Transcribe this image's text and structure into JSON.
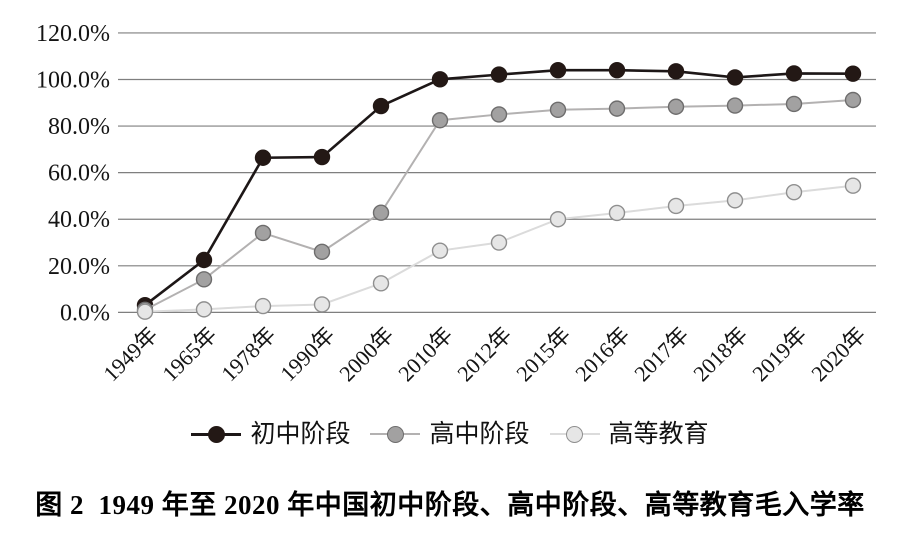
{
  "figure": {
    "caption": "图 2  1949 年至 2020 年中国初中阶段、高中阶段、高等教育毛入学率"
  },
  "chart_data": {
    "type": "line",
    "title": "图 2  1949 年至 2020 年中国初中阶段、高中阶段、高等教育毛入学率",
    "categories": [
      "1949年",
      "1965年",
      "1978年",
      "1990年",
      "2000年",
      "2010年",
      "2012年",
      "2015年",
      "2016年",
      "2017年",
      "2018年",
      "2019年",
      "2020年"
    ],
    "series": [
      {
        "name": "初中阶段",
        "values": [
          3.1,
          22.5,
          66.4,
          66.7,
          88.6,
          100.1,
          102.1,
          104.0,
          104.0,
          103.5,
          100.9,
          102.6,
          102.5
        ],
        "line_color": "#1d1717",
        "dot_fill": "#231815",
        "dot_stroke": "#231815"
      },
      {
        "name": "高中阶段",
        "values": [
          1.1,
          14.2,
          34.1,
          26.0,
          42.8,
          82.5,
          85.0,
          87.0,
          87.5,
          88.3,
          88.8,
          89.5,
          91.2
        ],
        "line_color": "#b3b1b1",
        "dot_fill": "#a2a1a1",
        "dot_stroke": "#6e6d6d"
      },
      {
        "name": "高等教育",
        "values": [
          0.3,
          1.3,
          2.7,
          3.4,
          12.5,
          26.5,
          30.0,
          40.0,
          42.7,
          45.7,
          48.1,
          51.6,
          54.4
        ],
        "line_color": "#dbdbdb",
        "dot_fill": "#e6e6e6",
        "dot_stroke": "#8f8f8f"
      }
    ],
    "xlabel": "",
    "ylabel": "",
    "ylim": [
      0,
      120
    ],
    "y_tick_step": 20,
    "y_tick_labels": [
      "0.0%",
      "20.0%",
      "40.0%",
      "60.0%",
      "80.0%",
      "100.0%",
      "120.0%"
    ],
    "grid": true,
    "gridline_color": "#7f7f7f",
    "legend_position": "bottom",
    "legend_entries": [
      "初中阶段",
      "高中阶段",
      "高等教育"
    ]
  }
}
